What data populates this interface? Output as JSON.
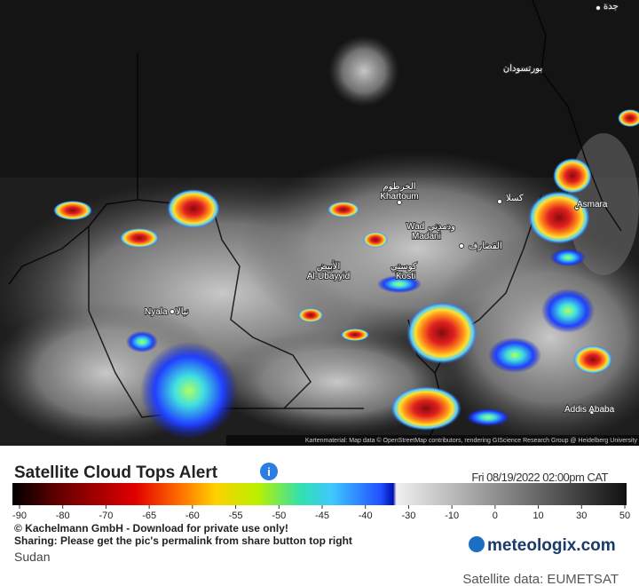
{
  "map": {
    "labels": {
      "jeddah": "جدة",
      "port_sudan": "بورتسودان",
      "khartoum_ar": "الخرطوم",
      "khartoum": "Khartoum",
      "kassala": "كسلا",
      "asmara": "Asmara",
      "wad": "Wad",
      "madani_ar": "ودمدني",
      "madani": "Madani",
      "qadarif": "القضارف",
      "ubayyid_ar": "الأبيض",
      "ubayyid": "Al-Ubayyid",
      "kosti_ar": "كوستي",
      "kosti": "Kosti",
      "nyala": "Nyala",
      "nyala_ar": "نيالا",
      "addis": "Addis Ababa"
    },
    "attribution": "Kartenmaterial: Map data © OpenStreetMap contributors, rendering GIScience Research Group @ Heidelberg University"
  },
  "legend": {
    "title": "Satellite Cloud Tops Alert",
    "timestamp": "Fri 08/19/2022 02:00pm CAT",
    "ticks": [
      -90,
      -80,
      -70,
      -65,
      -60,
      -55,
      -50,
      -45,
      -40,
      -30,
      -10,
      0,
      10,
      30,
      50
    ]
  },
  "footer": {
    "copyright": "© Kachelmann GmbH - Download for private use only!",
    "sharing": "Sharing: Please get the pic's permalink from share button top right",
    "region": "Sudan",
    "logo": "meteologix.com",
    "source": "Satellite data: EUMETSAT"
  }
}
